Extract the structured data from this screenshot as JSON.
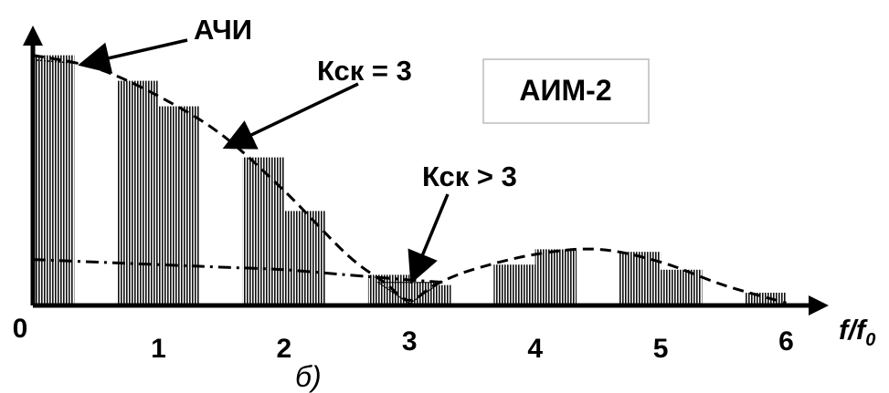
{
  "figure": {
    "caption": "б)",
    "axis_x_label_main": "f/f",
    "axis_x_label_sub": "0",
    "legend_box_text": "АИМ-2"
  },
  "annotations": {
    "achi": "АЧИ",
    "ksk_eq": "Кск = 3",
    "ksk_gt": "Кск > 3"
  },
  "chart_data": {
    "type": "bar",
    "xlabel": "f/f0",
    "ylabel": "",
    "title": "",
    "x_ticks": [
      "0",
      "1",
      "2",
      "3",
      "4",
      "5",
      "6"
    ],
    "xlim": [
      0,
      6.2
    ],
    "ylim": [
      0,
      1.1
    ],
    "bands": [
      {
        "start": 0.0,
        "end": 0.33,
        "height": 0.98
      },
      {
        "start": 0.67,
        "end": 1.0,
        "height": 0.88
      },
      {
        "start": 1.0,
        "end": 1.33,
        "height": 0.78
      },
      {
        "start": 1.67,
        "end": 2.0,
        "height": 0.58
      },
      {
        "start": 2.0,
        "end": 2.33,
        "height": 0.37
      },
      {
        "start": 2.67,
        "end": 3.0,
        "height": 0.12
      },
      {
        "start": 3.0,
        "end": 3.33,
        "height": 0.08
      },
      {
        "start": 3.67,
        "end": 4.0,
        "height": 0.16
      },
      {
        "start": 4.0,
        "end": 4.33,
        "height": 0.22
      },
      {
        "start": 4.67,
        "end": 5.0,
        "height": 0.21
      },
      {
        "start": 5.0,
        "end": 5.33,
        "height": 0.14
      },
      {
        "start": 5.67,
        "end": 6.0,
        "height": 0.05
      }
    ],
    "series": [
      {
        "style": "dashed",
        "x": [
          0,
          0.5,
          1.0,
          1.5,
          2.0,
          2.5,
          2.8,
          3.0,
          3.2,
          3.5,
          4.0,
          4.5,
          5.0,
          5.5,
          6.0
        ],
        "y": [
          0.98,
          0.93,
          0.82,
          0.67,
          0.45,
          0.2,
          0.09,
          0.02,
          0.08,
          0.14,
          0.2,
          0.22,
          0.17,
          0.08,
          0.01
        ]
      },
      {
        "style": "dash-dot",
        "x": [
          0,
          0.5,
          1.0,
          1.5,
          2.0,
          2.5,
          3.0,
          3.3
        ],
        "y": [
          0.18,
          0.17,
          0.16,
          0.15,
          0.14,
          0.12,
          0.1,
          0.09
        ]
      }
    ]
  }
}
